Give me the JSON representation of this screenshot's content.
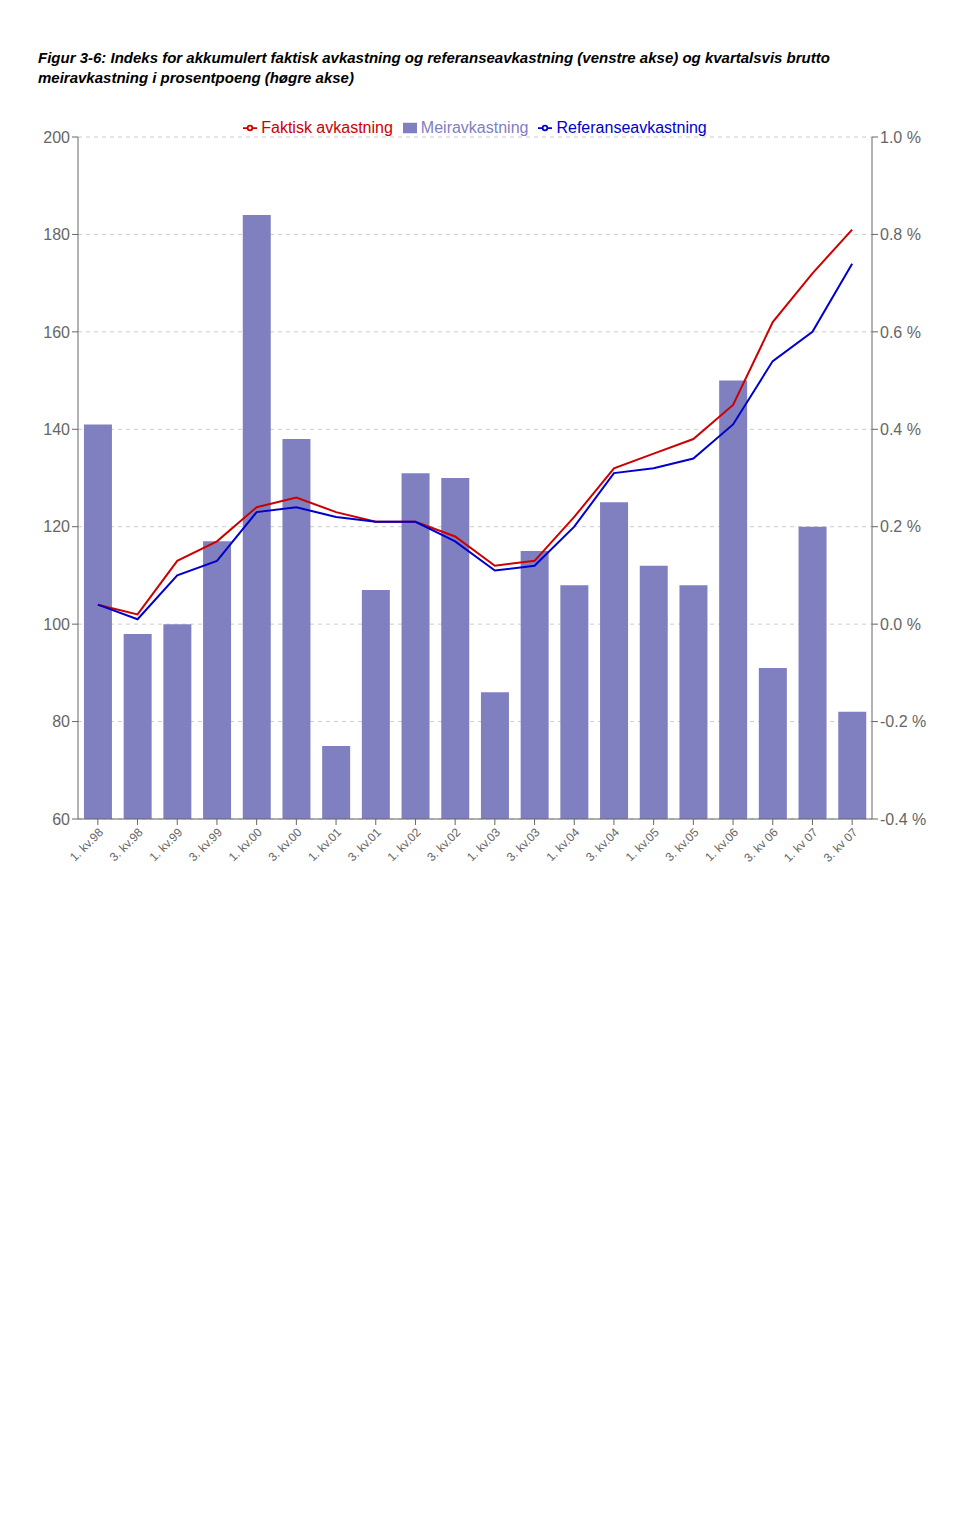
{
  "chart_data": {
    "type": "bar",
    "title": "Figur 3-6: Indeks for akkumulert faktisk avkastning og referanseavkastning (venstre akse) og kvartalsvis brutto meiravkastning i prosentpoeng (høgre akse)",
    "categories": [
      "1. kv.98",
      "3. kv.98",
      "1. kv.99",
      "3. kv.99",
      "1. kv.00",
      "3. kv.00",
      "1. kv.01",
      "3. kv.01",
      "1. kv.02",
      "3. kv.02",
      "1. kv.03",
      "3. kv.03",
      "1. kv.04",
      "3. kv.04",
      "1. kv.05",
      "3. kv.05",
      "1. kv.06",
      "3. kv 06",
      "1. kv 07",
      "3. kv 07"
    ],
    "series": [
      {
        "name": "Meiravkastning",
        "type": "bar",
        "color": "#8080c0",
        "values": [
          141,
          98,
          100,
          117,
          184,
          138,
          75,
          107,
          131,
          130,
          86,
          115,
          108,
          125,
          112,
          108,
          150,
          91,
          120,
          82
        ]
      },
      {
        "name": "Faktisk avkastning",
        "type": "line",
        "color": "#cc0000",
        "values": [
          104,
          102,
          113,
          117,
          124,
          126,
          123,
          121,
          121,
          118,
          112,
          113,
          122,
          132,
          135,
          138,
          145,
          162,
          172,
          181
        ]
      },
      {
        "name": "Referanseavkastning",
        "type": "line",
        "color": "#0000cc",
        "values": [
          104,
          101,
          110,
          113,
          123,
          124,
          122,
          121,
          121,
          117,
          111,
          112,
          120,
          131,
          132,
          134,
          141,
          154,
          160,
          174
        ]
      }
    ],
    "ylim": [
      60,
      200
    ],
    "yticks": [
      60,
      80,
      100,
      120,
      140,
      160,
      180,
      200
    ],
    "y2lim": [
      -0.4,
      1.0
    ],
    "y2ticks": [
      {
        "value": -0.4,
        "label": "-0.4 %"
      },
      {
        "value": -0.2,
        "label": "-0.2 %"
      },
      {
        "value": 0.0,
        "label": "0.0 %"
      },
      {
        "value": 0.2,
        "label": "0.2 %"
      },
      {
        "value": 0.4,
        "label": "0.4 %"
      },
      {
        "value": 0.6,
        "label": "0.6 %"
      },
      {
        "value": 0.8,
        "label": "0.8 %"
      },
      {
        "value": 1.0,
        "label": "1.0 %"
      }
    ],
    "grid": true,
    "legend": "top"
  }
}
